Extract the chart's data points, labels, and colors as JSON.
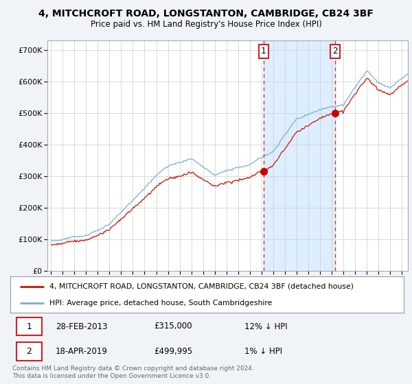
{
  "title": "4, MITCHCROFT ROAD, LONGSTANTON, CAMBRIDGE, CB24 3BF",
  "subtitle": "Price paid vs. HM Land Registry's House Price Index (HPI)",
  "bg_color": "#f0f4f8",
  "plot_bg_color": "#ffffff",
  "grid_color": "#cccccc",
  "sale1_date_num": 2013.16,
  "sale2_date_num": 2019.29,
  "sale1_price": 315000,
  "sale2_price": 499995,
  "legend1": "4, MITCHCROFT ROAD, LONGSTANTON, CAMBRIDGE, CB24 3BF (detached house)",
  "legend2": "HPI: Average price, detached house, South Cambridgeshire",
  "footer": "Contains HM Land Registry data © Crown copyright and database right 2024.\nThis data is licensed under the Open Government Licence v3.0.",
  "table": [
    [
      "1",
      "28-FEB-2013",
      "£315,000",
      "12% ↓ HPI"
    ],
    [
      "2",
      "18-APR-2019",
      "£499,995",
      "1% ↓ HPI"
    ]
  ],
  "red_color": "#cc1100",
  "blue_color": "#7aaddd",
  "vline_color": "#dd3333",
  "shade_color": "#ddeeff",
  "marker_color": "#cc0000",
  "label_box_color": "#cc2222"
}
